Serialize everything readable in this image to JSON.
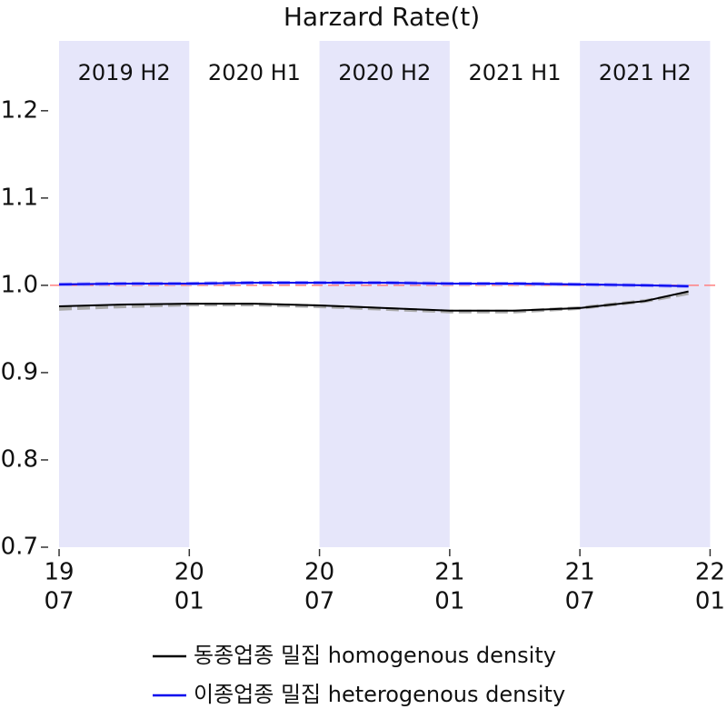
{
  "chart_data": {
    "type": "line",
    "title": "Harzard Rate(t)",
    "x": [
      2019.5,
      2019.75,
      2020.0,
      2020.25,
      2020.5,
      2020.75,
      2021.0,
      2021.25,
      2021.5,
      2021.75,
      2021.917
    ],
    "series": [
      {
        "color": "#aaaaaa",
        "dashed": true,
        "values": [
          0.973,
          0.976,
          0.978,
          0.978,
          0.976,
          0.973,
          0.97,
          0.97,
          0.974,
          0.982,
          0.991
        ]
      },
      {
        "name": "동종업종 밀집 homogenous density",
        "color": "#000000",
        "values": [
          0.976,
          0.978,
          0.979,
          0.979,
          0.977,
          0.974,
          0.971,
          0.971,
          0.974,
          0.982,
          0.993
        ]
      },
      {
        "color": "#9999ff",
        "dashed": true,
        "values": [
          1.001,
          1.002,
          1.002,
          1.003,
          1.003,
          1.003,
          1.002,
          1.002,
          1.001,
          1.0,
          0.999
        ]
      },
      {
        "name": "이종업종 밀집 heterogenous density",
        "color": "#0000ee",
        "values": [
          1.001,
          1.002,
          1.002,
          1.003,
          1.003,
          1.003,
          1.002,
          1.002,
          1.001,
          1.0,
          0.999
        ]
      }
    ],
    "hline": {
      "value": 1.0,
      "color": "#ff8080"
    },
    "bands": [
      {
        "label": "2019 H2",
        "start": 2019.5,
        "end": 2020.0,
        "shaded": true
      },
      {
        "label": "2020 H1",
        "start": 2020.0,
        "end": 2020.5,
        "shaded": false
      },
      {
        "label": "2020 H2",
        "start": 2020.5,
        "end": 2021.0,
        "shaded": true
      },
      {
        "label": "2021 H1",
        "start": 2021.0,
        "end": 2021.5,
        "shaded": false
      },
      {
        "label": "2021 H2",
        "start": 2021.5,
        "end": 2022.0,
        "shaded": true
      }
    ],
    "band_color": "#e6e6fa",
    "xlim": [
      2019.465,
      2022.03
    ],
    "xticks": [
      {
        "value": 2019.5,
        "label": [
          "19",
          "07"
        ]
      },
      {
        "value": 2020.0,
        "label": [
          "20",
          "01"
        ]
      },
      {
        "value": 2020.5,
        "label": [
          "20",
          "07"
        ]
      },
      {
        "value": 2021.0,
        "label": [
          "21",
          "01"
        ]
      },
      {
        "value": 2021.5,
        "label": [
          "21",
          "07"
        ]
      },
      {
        "value": 2022.0,
        "label": [
          "22",
          "01"
        ]
      }
    ],
    "ylim": [
      0.7,
      1.28
    ],
    "yticks": [
      0.7,
      0.8,
      0.9,
      {
        "value": 1.0,
        "label": "1.0"
      },
      1.1,
      1.2
    ]
  }
}
